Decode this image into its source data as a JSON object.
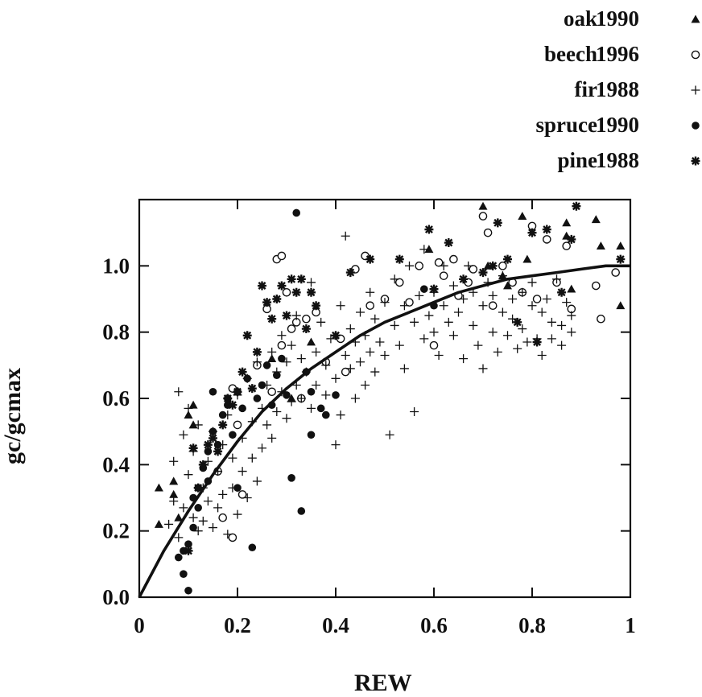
{
  "colors": {
    "ink": "#111111",
    "background": "#ffffff"
  },
  "legend": [
    {
      "name": "oak",
      "year": "1990",
      "marker": "filled-triangle"
    },
    {
      "name": "beech",
      "year": "1996",
      "marker": "open-circle"
    },
    {
      "name": "fir",
      "year": "1988",
      "marker": "plus"
    },
    {
      "name": "spruce",
      "year": "1990",
      "marker": "filled-circle"
    },
    {
      "name": "pine",
      "year": "1988",
      "marker": "asterisk"
    }
  ],
  "chart_data": {
    "type": "scatter",
    "xlabel": "REW",
    "ylabel": "gc/gcmax",
    "xlim": [
      0,
      1
    ],
    "ylim": [
      0,
      1.2
    ],
    "xticks": [
      "0",
      "0.2",
      "0.4",
      "0.6",
      "0.8",
      "1"
    ],
    "yticks": [
      "0.0",
      "0.2",
      "0.4",
      "0.6",
      "0.8",
      "1.0"
    ],
    "grid": false,
    "legend_position": "top-right",
    "fit_curve": {
      "description": "saturating fit",
      "x": [
        0,
        0.05,
        0.1,
        0.15,
        0.2,
        0.25,
        0.3,
        0.35,
        0.4,
        0.45,
        0.5,
        0.55,
        0.6,
        0.65,
        0.7,
        0.75,
        0.8,
        0.85,
        0.9,
        0.95,
        1.0
      ],
      "y": [
        0,
        0.14,
        0.26,
        0.37,
        0.47,
        0.56,
        0.63,
        0.69,
        0.74,
        0.79,
        0.83,
        0.86,
        0.89,
        0.92,
        0.94,
        0.96,
        0.97,
        0.98,
        0.99,
        1.0,
        1.0
      ]
    },
    "series": [
      {
        "name": "oak 1990",
        "marker": "filled-triangle",
        "x": [
          0.04,
          0.04,
          0.07,
          0.07,
          0.08,
          0.1,
          0.11,
          0.11,
          0.27,
          0.31,
          0.35,
          0.59,
          0.7,
          0.71,
          0.74,
          0.75,
          0.78,
          0.79,
          0.87,
          0.87,
          0.88,
          0.93,
          0.94,
          0.98,
          0.98
        ],
        "y": [
          0.33,
          0.22,
          0.35,
          0.31,
          0.24,
          0.55,
          0.58,
          0.52,
          0.72,
          0.6,
          0.77,
          1.05,
          1.18,
          1.0,
          0.97,
          0.94,
          1.15,
          1.02,
          1.13,
          1.09,
          0.93,
          1.14,
          1.06,
          1.06,
          0.88
        ]
      },
      {
        "name": "beech 1996",
        "marker": "open-circle",
        "x": [
          0.16,
          0.17,
          0.19,
          0.19,
          0.2,
          0.21,
          0.24,
          0.26,
          0.27,
          0.28,
          0.29,
          0.29,
          0.3,
          0.31,
          0.32,
          0.33,
          0.34,
          0.36,
          0.38,
          0.41,
          0.42,
          0.44,
          0.46,
          0.47,
          0.5,
          0.53,
          0.55,
          0.57,
          0.6,
          0.61,
          0.62,
          0.64,
          0.65,
          0.67,
          0.68,
          0.7,
          0.71,
          0.72,
          0.74,
          0.76,
          0.78,
          0.8,
          0.81,
          0.83,
          0.85,
          0.87,
          0.88,
          0.93,
          0.94,
          0.97
        ],
        "y": [
          0.38,
          0.24,
          0.18,
          0.63,
          0.52,
          0.31,
          0.7,
          0.87,
          0.62,
          1.02,
          1.03,
          0.76,
          0.92,
          0.81,
          0.83,
          0.6,
          0.84,
          0.86,
          0.71,
          0.78,
          0.68,
          0.99,
          1.03,
          0.88,
          0.9,
          0.95,
          0.89,
          1.0,
          0.76,
          1.01,
          0.97,
          1.02,
          0.91,
          0.95,
          0.99,
          1.15,
          1.1,
          0.88,
          1.0,
          0.95,
          0.92,
          1.12,
          0.9,
          1.08,
          0.95,
          1.06,
          0.87,
          0.94,
          0.84,
          0.98
        ]
      },
      {
        "name": "fir 1988",
        "marker": "plus",
        "x": [
          0.06,
          0.07,
          0.07,
          0.08,
          0.08,
          0.09,
          0.09,
          0.1,
          0.1,
          0.11,
          0.11,
          0.12,
          0.12,
          0.13,
          0.13,
          0.14,
          0.14,
          0.15,
          0.15,
          0.16,
          0.16,
          0.17,
          0.17,
          0.18,
          0.18,
          0.19,
          0.19,
          0.2,
          0.2,
          0.21,
          0.21,
          0.22,
          0.22,
          0.23,
          0.23,
          0.24,
          0.24,
          0.25,
          0.25,
          0.26,
          0.26,
          0.27,
          0.27,
          0.28,
          0.28,
          0.29,
          0.29,
          0.3,
          0.3,
          0.31,
          0.31,
          0.32,
          0.32,
          0.33,
          0.33,
          0.34,
          0.34,
          0.35,
          0.35,
          0.36,
          0.36,
          0.37,
          0.38,
          0.38,
          0.39,
          0.4,
          0.4,
          0.41,
          0.41,
          0.42,
          0.42,
          0.43,
          0.43,
          0.44,
          0.44,
          0.45,
          0.45,
          0.46,
          0.46,
          0.47,
          0.47,
          0.48,
          0.48,
          0.49,
          0.5,
          0.5,
          0.51,
          0.52,
          0.52,
          0.53,
          0.54,
          0.54,
          0.55,
          0.56,
          0.56,
          0.57,
          0.58,
          0.58,
          0.59,
          0.6,
          0.6,
          0.61,
          0.62,
          0.62,
          0.63,
          0.64,
          0.64,
          0.65,
          0.66,
          0.66,
          0.67,
          0.68,
          0.68,
          0.69,
          0.7,
          0.7,
          0.71,
          0.72,
          0.72,
          0.73,
          0.74,
          0.74,
          0.75,
          0.76,
          0.76,
          0.77,
          0.78,
          0.78,
          0.79,
          0.8,
          0.8,
          0.81,
          0.82,
          0.82,
          0.83,
          0.84,
          0.84,
          0.85,
          0.86,
          0.86,
          0.87,
          0.88,
          0.88
        ],
        "y": [
          0.22,
          0.41,
          0.29,
          0.18,
          0.62,
          0.27,
          0.49,
          0.37,
          0.57,
          0.24,
          0.44,
          0.2,
          0.52,
          0.33,
          0.23,
          0.41,
          0.29,
          0.5,
          0.21,
          0.38,
          0.27,
          0.46,
          0.31,
          0.55,
          0.19,
          0.42,
          0.33,
          0.61,
          0.25,
          0.48,
          0.38,
          0.66,
          0.3,
          0.53,
          0.42,
          0.71,
          0.35,
          0.57,
          0.45,
          0.64,
          0.52,
          0.74,
          0.48,
          0.68,
          0.56,
          0.79,
          0.62,
          0.71,
          0.54,
          0.76,
          0.59,
          0.85,
          0.64,
          0.72,
          0.6,
          0.81,
          0.68,
          0.95,
          0.57,
          0.74,
          0.64,
          0.83,
          0.7,
          0.61,
          0.78,
          0.46,
          0.66,
          0.88,
          0.55,
          0.73,
          1.09,
          0.69,
          0.81,
          0.6,
          0.77,
          0.86,
          0.71,
          0.79,
          0.64,
          0.92,
          0.74,
          0.84,
          0.68,
          0.77,
          0.89,
          0.73,
          0.49,
          0.82,
          0.96,
          0.76,
          0.88,
          0.69,
          1.0,
          0.83,
          0.56,
          0.91,
          0.78,
          1.05,
          0.85,
          0.92,
          0.8,
          0.73,
          0.88,
          1.0,
          0.83,
          0.79,
          0.94,
          0.86,
          0.72,
          0.9,
          1.0,
          0.82,
          0.92,
          0.76,
          0.88,
          0.69,
          0.95,
          0.8,
          0.91,
          0.74,
          0.86,
          0.97,
          0.79,
          0.9,
          0.84,
          0.75,
          0.92,
          0.81,
          0.77,
          0.88,
          0.95,
          0.78,
          0.86,
          0.73,
          0.9,
          0.83,
          0.78,
          0.96,
          0.82,
          0.76,
          0.89,
          0.85,
          0.8
        ]
      },
      {
        "name": "spruce 1990",
        "marker": "filled-circle",
        "x": [
          0.08,
          0.09,
          0.09,
          0.1,
          0.1,
          0.11,
          0.11,
          0.12,
          0.12,
          0.13,
          0.14,
          0.14,
          0.15,
          0.15,
          0.16,
          0.17,
          0.18,
          0.18,
          0.19,
          0.2,
          0.2,
          0.21,
          0.22,
          0.23,
          0.24,
          0.25,
          0.26,
          0.27,
          0.28,
          0.29,
          0.3,
          0.31,
          0.32,
          0.33,
          0.34,
          0.35,
          0.35,
          0.37,
          0.38,
          0.4,
          0.58,
          0.6
        ],
        "y": [
          0.12,
          0.07,
          0.14,
          0.02,
          0.16,
          0.3,
          0.21,
          0.33,
          0.27,
          0.39,
          0.44,
          0.35,
          0.5,
          0.62,
          0.46,
          0.55,
          0.58,
          0.6,
          0.49,
          0.33,
          0.62,
          0.57,
          0.66,
          0.15,
          0.6,
          0.64,
          0.7,
          0.58,
          0.67,
          0.72,
          0.61,
          0.36,
          1.16,
          0.26,
          0.68,
          0.62,
          0.49,
          0.57,
          0.55,
          0.61,
          0.93,
          0.88
        ]
      },
      {
        "name": "pine 1988",
        "marker": "asterisk",
        "x": [
          0.1,
          0.11,
          0.12,
          0.13,
          0.14,
          0.15,
          0.16,
          0.17,
          0.18,
          0.19,
          0.2,
          0.21,
          0.22,
          0.23,
          0.24,
          0.25,
          0.26,
          0.27,
          0.28,
          0.29,
          0.3,
          0.31,
          0.32,
          0.33,
          0.34,
          0.35,
          0.36,
          0.4,
          0.43,
          0.47,
          0.53,
          0.59,
          0.6,
          0.63,
          0.66,
          0.7,
          0.72,
          0.73,
          0.75,
          0.77,
          0.8,
          0.81,
          0.83,
          0.86,
          0.88,
          0.89,
          0.98
        ],
        "y": [
          0.14,
          0.45,
          0.33,
          0.4,
          0.46,
          0.48,
          0.44,
          0.52,
          0.6,
          0.58,
          0.62,
          0.68,
          0.79,
          0.63,
          0.74,
          0.94,
          0.89,
          0.84,
          0.9,
          0.94,
          0.85,
          0.96,
          0.92,
          0.96,
          0.81,
          0.92,
          0.88,
          0.79,
          0.98,
          1.02,
          1.02,
          1.11,
          0.93,
          1.07,
          0.96,
          0.98,
          1.0,
          1.13,
          1.02,
          0.83,
          1.1,
          0.77,
          1.11,
          0.92,
          1.08,
          1.18,
          1.02
        ]
      }
    ]
  }
}
